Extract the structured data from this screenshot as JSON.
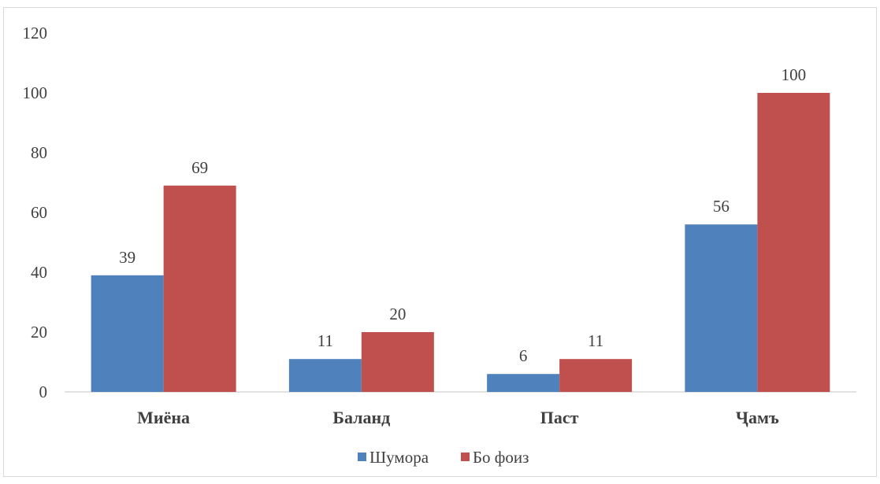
{
  "chart_data": {
    "type": "bar",
    "categories": [
      "Миёна",
      "Баланд",
      "Паст",
      "Ҷамъ"
    ],
    "series": [
      {
        "name": "Шумора",
        "values": [
          39,
          11,
          6,
          56
        ],
        "color": "#4f81bd"
      },
      {
        "name": "Бо фоиз",
        "values": [
          69,
          20,
          11,
          100
        ],
        "color": "#c0504d"
      }
    ],
    "ylim": [
      0,
      120
    ],
    "yticks": [
      "0",
      "20",
      "40",
      "60",
      "80",
      "100",
      "120"
    ],
    "grid": false,
    "legend": "bottom",
    "data_labels": true
  }
}
